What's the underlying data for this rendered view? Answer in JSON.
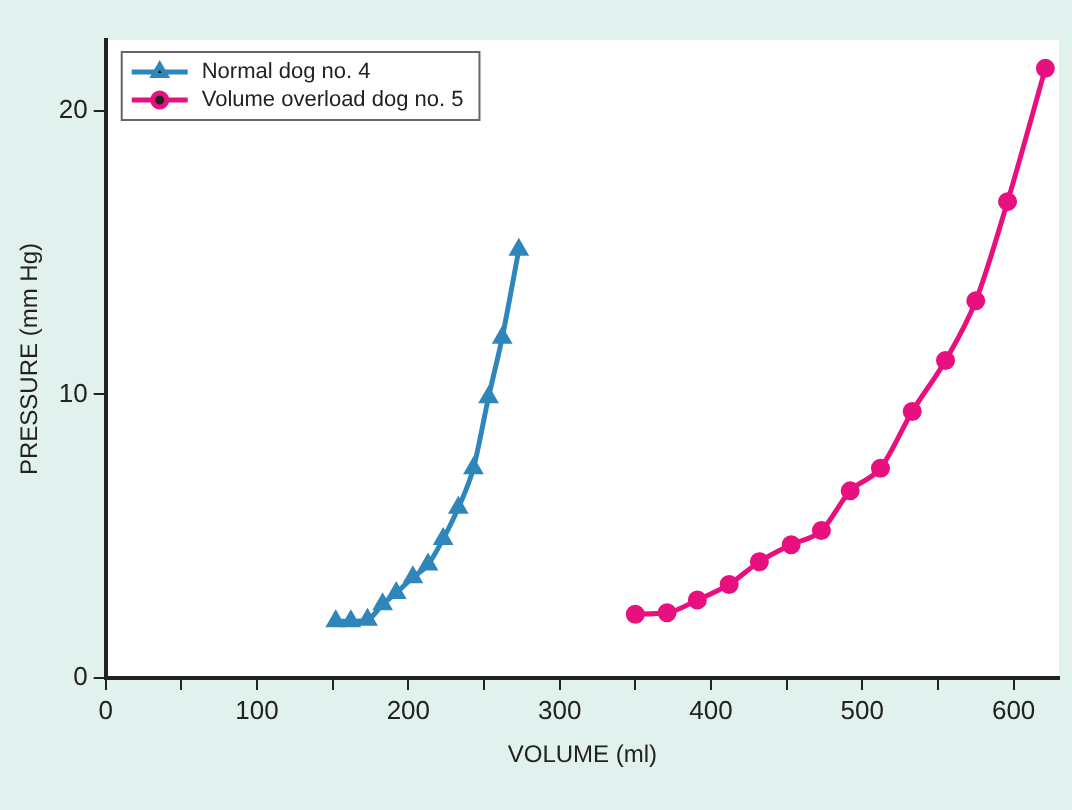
{
  "chart_data": {
    "type": "line",
    "xlabel": "VOLUME (ml)",
    "ylabel": "PRESSURE (mm Hg)",
    "xlim": [
      0,
      630
    ],
    "xticks": [
      0,
      {
        "value": 50,
        "label": null
      },
      100,
      {
        "value": 150,
        "label": null
      },
      200,
      {
        "value": 250,
        "label": null
      },
      300,
      {
        "value": 350,
        "label": null
      },
      400,
      {
        "value": 450,
        "label": null
      },
      500,
      {
        "value": 550,
        "label": null
      },
      600
    ],
    "ylim": [
      0,
      22.5
    ],
    "yticks": [
      0,
      10,
      20
    ],
    "grid": false,
    "legend": "top left",
    "series": [
      {
        "name": "Normal dog no. 4",
        "color": "#2f86bb",
        "marker": "triangle",
        "x": [
          152,
          162,
          173,
          183,
          192,
          203,
          213,
          223,
          233,
          243,
          253,
          262,
          273
        ],
        "values": [
          2.0,
          2.0,
          2.05,
          2.6,
          3.0,
          3.55,
          4.0,
          4.9,
          6.0,
          7.4,
          9.9,
          12.0,
          15.1
        ]
      },
      {
        "name": "Volume overload dog no. 5",
        "color": "#e8107f",
        "marker": "circle",
        "x": [
          350,
          371,
          391,
          412,
          432,
          453,
          473,
          492,
          512,
          533,
          555,
          575,
          596,
          621
        ],
        "values": [
          2.25,
          2.3,
          2.75,
          3.3,
          4.1,
          4.7,
          5.2,
          6.6,
          7.4,
          9.4,
          11.2,
          13.3,
          16.8,
          21.5
        ]
      }
    ]
  }
}
